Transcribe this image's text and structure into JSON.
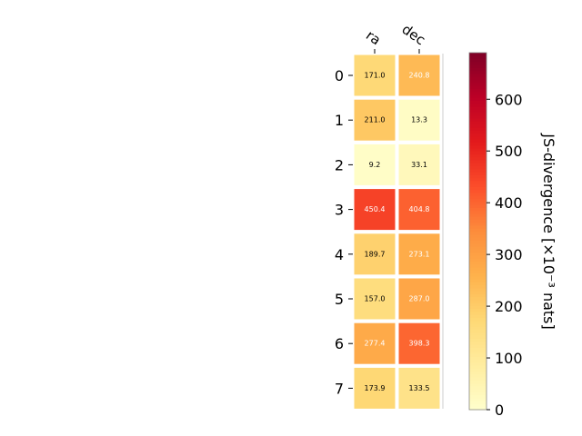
{
  "chart_data": {
    "type": "heatmap",
    "columns": [
      "ra",
      "dec"
    ],
    "rows": [
      "0",
      "1",
      "2",
      "3",
      "4",
      "5",
      "6",
      "7"
    ],
    "values": [
      [
        171.0,
        240.8
      ],
      [
        211.0,
        13.3
      ],
      [
        9.2,
        33.1
      ],
      [
        450.4,
        404.8
      ],
      [
        189.7,
        273.1
      ],
      [
        157.0,
        287.0
      ],
      [
        277.4,
        398.3
      ],
      [
        173.9,
        133.5
      ]
    ],
    "value_labels": [
      [
        "171.0",
        "240.8"
      ],
      [
        "211.0",
        "13.3"
      ],
      [
        "9.2",
        "33.1"
      ],
      [
        "450.4",
        "404.8"
      ],
      [
        "189.7",
        "273.1"
      ],
      [
        "157.0",
        "287.0"
      ],
      [
        "277.4",
        "398.3"
      ],
      [
        "173.9",
        "133.5"
      ]
    ],
    "colorbar": {
      "label": "JS-divergence [×10⁻³ nats]",
      "ticks": [
        0,
        100,
        200,
        300,
        400,
        500,
        600
      ],
      "tick_labels": [
        "0",
        "100",
        "200",
        "300",
        "400",
        "500",
        "600"
      ],
      "range": [
        0,
        690
      ],
      "colormap": "YlOrRd"
    },
    "grid": false
  }
}
